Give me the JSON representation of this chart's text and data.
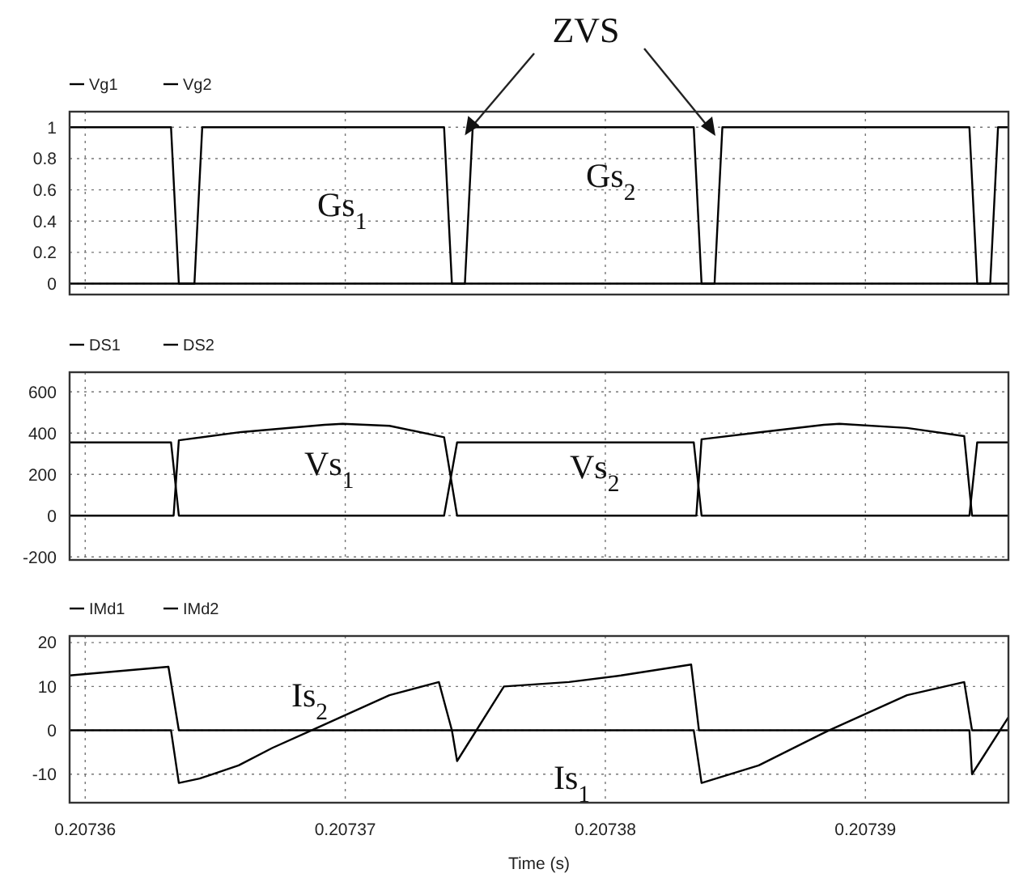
{
  "chart_data": [
    {
      "type": "line",
      "xlim": [
        0.2073594,
        0.2073955
      ],
      "xticks": [
        0.20736,
        0.20737,
        0.20738,
        0.20739
      ],
      "ylim": [
        -0.07,
        1.1
      ],
      "yticks": [
        0,
        0.2,
        0.4,
        0.6,
        0.8,
        1
      ],
      "grid": true,
      "legend": "top left",
      "tick_labels": "y",
      "series": [
        {
          "name": "Vg1",
          "color": "#000000",
          "x": [
            0.2073594,
            0.2073633,
            0.2073636,
            0.2073746,
            0.2073749,
            0.2073834,
            0.2073837,
            0.2073948,
            0.2073951,
            0.2073955
          ],
          "values": [
            1,
            1,
            0,
            0,
            1,
            1,
            0,
            0,
            1,
            1
          ]
        },
        {
          "name": "Vg2",
          "color": "#000000",
          "x": [
            0.2073594,
            0.2073642,
            0.2073645,
            0.2073738,
            0.2073741,
            0.2073842,
            0.2073845,
            0.207394,
            0.2073943,
            0.2073955
          ],
          "values": [
            0,
            0,
            1,
            1,
            0,
            0,
            1,
            1,
            0,
            0
          ]
        }
      ],
      "annotations": [
        {
          "text": "ZVS",
          "x": 0.2073746,
          "y": 1
        },
        "Gs$_{1}$",
        "Gs$_{2}$"
      ]
    },
    {
      "type": "line",
      "xlim": [
        0.2073594,
        0.2073955
      ],
      "xticks": [
        0.20736,
        0.20737,
        0.20738,
        0.20739
      ],
      "ylim": [
        -215,
        695
      ],
      "yticks": [
        -200,
        0,
        200,
        400,
        600
      ],
      "grid": true,
      "legend": "top left",
      "tick_labels": "y",
      "series": [
        {
          "name": "DS1",
          "color": "#000000",
          "x": [
            0.2073594,
            0.2073634,
            0.2073636,
            0.207366,
            0.2073692,
            0.2073699,
            0.2073717,
            0.2073738,
            0.2073743,
            0.2073835,
            0.2073837,
            0.207386,
            0.2073884,
            0.207389,
            0.2073916,
            0.2073938,
            0.2073941,
            0.2073955
          ],
          "values": [
            0,
            0,
            365,
            405,
            440,
            445,
            435,
            380,
            0,
            0,
            370,
            405,
            440,
            445,
            425,
            385,
            0,
            0
          ]
        },
        {
          "name": "DS2",
          "color": "#000000",
          "x": [
            0.2073594,
            0.2073633,
            0.2073636,
            0.2073738,
            0.2073743,
            0.2073834,
            0.2073837,
            0.207394,
            0.2073943,
            0.2073955
          ],
          "values": [
            355,
            355,
            0,
            0,
            355,
            355,
            0,
            0,
            355,
            355
          ]
        }
      ],
      "annotations": [
        "Vs$_{1}$",
        "Vs$_{2}$"
      ]
    },
    {
      "type": "line",
      "xlim": [
        0.2073594,
        0.2073955
      ],
      "xticks": [
        0.20736,
        0.20737,
        0.20738,
        0.20739
      ],
      "ylim": [
        -16.5,
        21.5
      ],
      "yticks": [
        -10,
        0,
        10,
        20
      ],
      "grid": true,
      "legend": "top left",
      "xlabel": "Time (s)",
      "series": [
        {
          "name": "IMd1",
          "color": "#000000",
          "x": [
            0.2073594,
            0.2073632,
            0.2073636,
            0.2073741,
            0.2073743,
            0.2073761,
            0.2073786,
            0.2073806,
            0.2073833,
            0.2073836,
            0.207394,
            0.2073941,
            0.2073955
          ],
          "values": [
            12.5,
            14.5,
            0,
            0,
            -7,
            10,
            11,
            12.5,
            15,
            0,
            0,
            -10,
            3
          ]
        },
        {
          "name": "IMd2",
          "color": "#000000",
          "x": [
            0.2073594,
            0.2073633,
            0.2073636,
            0.2073644,
            0.2073659,
            0.2073672,
            0.2073687,
            0.2073702,
            0.2073717,
            0.2073736,
            0.2073741,
            0.2073834,
            0.2073837,
            0.2073859,
            0.2073886,
            0.2073901,
            0.2073916,
            0.2073938,
            0.2073941,
            0.2073955
          ],
          "values": [
            0,
            0,
            -12,
            -11,
            -8,
            -4,
            0,
            4,
            8,
            11,
            0,
            0,
            -12,
            -8,
            0,
            4,
            8,
            11,
            0,
            0
          ]
        }
      ],
      "annotations": [
        "Is$_{2}$",
        "Is$_{1}$"
      ]
    }
  ]
}
